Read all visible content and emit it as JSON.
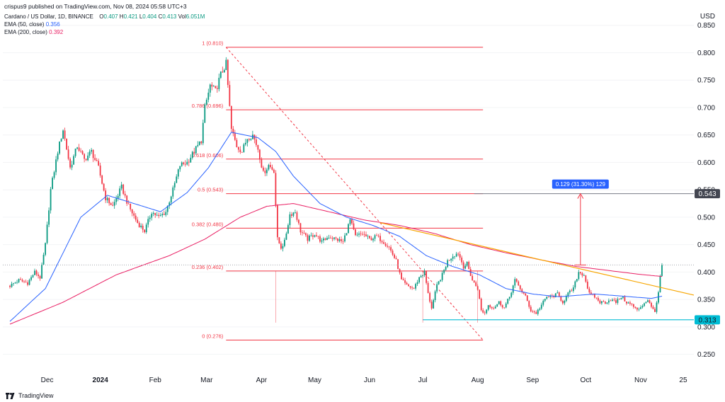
{
  "header": {
    "published": "crispus9 published on TradingView.com, Nov 08, 2024 05:58 UTC+3",
    "symbol": "Cardano / US Dollar, 1D, BINANCE",
    "ohlc": [
      {
        "label": "O",
        "value": "0.407"
      },
      {
        "label": "H",
        "value": "0.421"
      },
      {
        "label": "L",
        "value": "0.404"
      },
      {
        "label": "C",
        "value": "0.413"
      },
      {
        "label": "Vol",
        "value": "6.051M"
      }
    ],
    "ema50_label": "EMA (50, close)",
    "ema50_value": "0.356",
    "ema200_label": "EMA (200, close)",
    "ema200_value": "0.392"
  },
  "currency": "USD",
  "footer": {
    "brand": "TradingView"
  },
  "colors": {
    "up": "#089981",
    "down": "#f23645",
    "ema50": "#2962ff",
    "ema200": "#e91e63",
    "fib": "#f23645",
    "trendline": "#f7a600",
    "support": "#00bcd4",
    "support_label_bg": "#00bcd4",
    "resistance_label_bg": "#434651",
    "measure": "#2962ff"
  },
  "chart_data": {
    "type": "candlestick",
    "title": "Cardano / US Dollar, 1D, BINANCE",
    "ylabel": "USD",
    "ylim": [
      0.225,
      0.86
    ],
    "y_ticks": [
      "0.250",
      "0.300",
      "0.350",
      "0.400",
      "0.450",
      "0.500",
      "0.550",
      "0.600",
      "0.650",
      "0.700",
      "0.750",
      "0.800",
      "0.850"
    ],
    "y_tick_values": [
      0.25,
      0.3,
      0.35,
      0.4,
      0.45,
      0.5,
      0.55,
      0.6,
      0.65,
      0.7,
      0.75,
      0.8,
      0.85
    ],
    "x_range_days": [
      -4,
      386
    ],
    "x_labels": [
      {
        "day": 21,
        "label": "Dec"
      },
      {
        "day": 51,
        "label": "2024"
      },
      {
        "day": 82,
        "label": "Feb"
      },
      {
        "day": 111,
        "label": "Mar"
      },
      {
        "day": 142,
        "label": "Apr"
      },
      {
        "day": 172,
        "label": "May"
      },
      {
        "day": 203,
        "label": "Jun"
      },
      {
        "day": 233,
        "label": "Jul"
      },
      {
        "day": 264,
        "label": "Aug"
      },
      {
        "day": 295,
        "label": "Sep"
      },
      {
        "day": 325,
        "label": "Oct"
      },
      {
        "day": 356,
        "label": "Nov"
      },
      {
        "day": 380,
        "label": "25"
      }
    ],
    "price_anchors": [
      [
        0,
        0.375
      ],
      [
        5,
        0.385
      ],
      [
        10,
        0.38
      ],
      [
        14,
        0.4
      ],
      [
        17,
        0.39
      ],
      [
        20,
        0.45
      ],
      [
        23,
        0.55
      ],
      [
        27,
        0.62
      ],
      [
        30,
        0.66
      ],
      [
        34,
        0.59
      ],
      [
        38,
        0.63
      ],
      [
        42,
        0.605
      ],
      [
        46,
        0.62
      ],
      [
        50,
        0.59
      ],
      [
        54,
        0.535
      ],
      [
        58,
        0.52
      ],
      [
        63,
        0.555
      ],
      [
        67,
        0.52
      ],
      [
        72,
        0.49
      ],
      [
        76,
        0.475
      ],
      [
        80,
        0.51
      ],
      [
        84,
        0.5
      ],
      [
        88,
        0.51
      ],
      [
        92,
        0.55
      ],
      [
        96,
        0.595
      ],
      [
        100,
        0.6
      ],
      [
        104,
        0.62
      ],
      [
        108,
        0.64
      ],
      [
        110,
        0.7
      ],
      [
        113,
        0.74
      ],
      [
        116,
        0.73
      ],
      [
        119,
        0.76
      ],
      [
        122,
        0.78
      ],
      [
        125,
        0.66
      ],
      [
        128,
        0.63
      ],
      [
        131,
        0.62
      ],
      [
        134,
        0.645
      ],
      [
        137,
        0.65
      ],
      [
        140,
        0.625
      ],
      [
        143,
        0.58
      ],
      [
        146,
        0.595
      ],
      [
        149,
        0.585
      ],
      [
        151,
        0.46
      ],
      [
        153,
        0.445
      ],
      [
        155,
        0.455
      ],
      [
        158,
        0.505
      ],
      [
        161,
        0.51
      ],
      [
        164,
        0.475
      ],
      [
        168,
        0.46
      ],
      [
        172,
        0.47
      ],
      [
        176,
        0.455
      ],
      [
        180,
        0.465
      ],
      [
        184,
        0.46
      ],
      [
        188,
        0.455
      ],
      [
        192,
        0.495
      ],
      [
        195,
        0.465
      ],
      [
        199,
        0.47
      ],
      [
        203,
        0.46
      ],
      [
        207,
        0.465
      ],
      [
        211,
        0.455
      ],
      [
        214,
        0.445
      ],
      [
        218,
        0.42
      ],
      [
        221,
        0.385
      ],
      [
        224,
        0.375
      ],
      [
        228,
        0.37
      ],
      [
        231,
        0.39
      ],
      [
        234,
        0.4
      ],
      [
        236,
        0.36
      ],
      [
        238,
        0.335
      ],
      [
        241,
        0.375
      ],
      [
        244,
        0.395
      ],
      [
        247,
        0.42
      ],
      [
        250,
        0.43
      ],
      [
        253,
        0.435
      ],
      [
        256,
        0.41
      ],
      [
        258,
        0.415
      ],
      [
        261,
        0.385
      ],
      [
        264,
        0.37
      ],
      [
        266,
        0.33
      ],
      [
        268,
        0.325
      ],
      [
        270,
        0.34
      ],
      [
        273,
        0.335
      ],
      [
        276,
        0.345
      ],
      [
        279,
        0.335
      ],
      [
        282,
        0.355
      ],
      [
        285,
        0.385
      ],
      [
        288,
        0.37
      ],
      [
        291,
        0.355
      ],
      [
        294,
        0.33
      ],
      [
        297,
        0.325
      ],
      [
        300,
        0.34
      ],
      [
        303,
        0.355
      ],
      [
        306,
        0.355
      ],
      [
        309,
        0.36
      ],
      [
        312,
        0.345
      ],
      [
        315,
        0.36
      ],
      [
        318,
        0.37
      ],
      [
        321,
        0.4
      ],
      [
        324,
        0.395
      ],
      [
        327,
        0.36
      ],
      [
        330,
        0.355
      ],
      [
        333,
        0.345
      ],
      [
        336,
        0.345
      ],
      [
        339,
        0.35
      ],
      [
        342,
        0.345
      ],
      [
        345,
        0.355
      ],
      [
        348,
        0.345
      ],
      [
        351,
        0.34
      ],
      [
        354,
        0.33
      ],
      [
        357,
        0.34
      ],
      [
        360,
        0.35
      ],
      [
        362,
        0.335
      ],
      [
        364,
        0.33
      ],
      [
        366,
        0.36
      ],
      [
        367,
        0.392
      ],
      [
        368,
        0.413
      ]
    ],
    "ema50_anchors": [
      [
        0,
        0.31
      ],
      [
        20,
        0.37
      ],
      [
        40,
        0.5
      ],
      [
        55,
        0.54
      ],
      [
        70,
        0.525
      ],
      [
        85,
        0.51
      ],
      [
        100,
        0.545
      ],
      [
        112,
        0.59
      ],
      [
        125,
        0.655
      ],
      [
        140,
        0.645
      ],
      [
        150,
        0.62
      ],
      [
        160,
        0.575
      ],
      [
        175,
        0.525
      ],
      [
        190,
        0.5
      ],
      [
        205,
        0.485
      ],
      [
        220,
        0.465
      ],
      [
        235,
        0.43
      ],
      [
        250,
        0.41
      ],
      [
        265,
        0.395
      ],
      [
        280,
        0.37
      ],
      [
        295,
        0.36
      ],
      [
        310,
        0.355
      ],
      [
        330,
        0.36
      ],
      [
        350,
        0.355
      ],
      [
        362,
        0.352
      ],
      [
        368,
        0.356
      ]
    ],
    "ema200_anchors": [
      [
        0,
        0.305
      ],
      [
        30,
        0.345
      ],
      [
        60,
        0.395
      ],
      [
        90,
        0.43
      ],
      [
        110,
        0.46
      ],
      [
        130,
        0.5
      ],
      [
        145,
        0.52
      ],
      [
        160,
        0.525
      ],
      [
        180,
        0.51
      ],
      [
        200,
        0.495
      ],
      [
        220,
        0.485
      ],
      [
        240,
        0.47
      ],
      [
        260,
        0.45
      ],
      [
        280,
        0.435
      ],
      [
        300,
        0.422
      ],
      [
        320,
        0.41
      ],
      [
        340,
        0.402
      ],
      [
        355,
        0.396
      ],
      [
        368,
        0.392
      ]
    ],
    "fib_levels": [
      {
        "ratio_label": "1 (0.810)",
        "price": 0.81
      },
      {
        "ratio_label": "0.786 (0.696)",
        "price": 0.696
      },
      {
        "ratio_label": "0.618 (0.606)",
        "price": 0.606
      },
      {
        "ratio_label": "0.5 (0.543)",
        "price": 0.543
      },
      {
        "ratio_label": "0.382 (0.480)",
        "price": 0.48
      },
      {
        "ratio_label": "0.236 (0.402)",
        "price": 0.402
      },
      {
        "ratio_label": "0 (0.276)",
        "price": 0.276
      }
    ],
    "fib_range_days": [
      122,
      267
    ],
    "fib_diagonal": {
      "start": [
        122,
        0.81
      ],
      "end": [
        267,
        0.276
      ]
    },
    "trendline": {
      "start": [
        209,
        0.49
      ],
      "end": [
        386,
        0.358
      ]
    },
    "support": {
      "price": 0.313,
      "label": "0.313",
      "start_day": 233
    },
    "resistance": {
      "price": 0.543,
      "label": "0.543",
      "start_day": 262
    },
    "last_price": 0.413,
    "measure": {
      "day": 322,
      "from": 0.413,
      "to": 0.543,
      "label": "0.129 (31.30%) 129"
    },
    "vertical_marker_days": [
      150,
      233,
      264
    ]
  }
}
